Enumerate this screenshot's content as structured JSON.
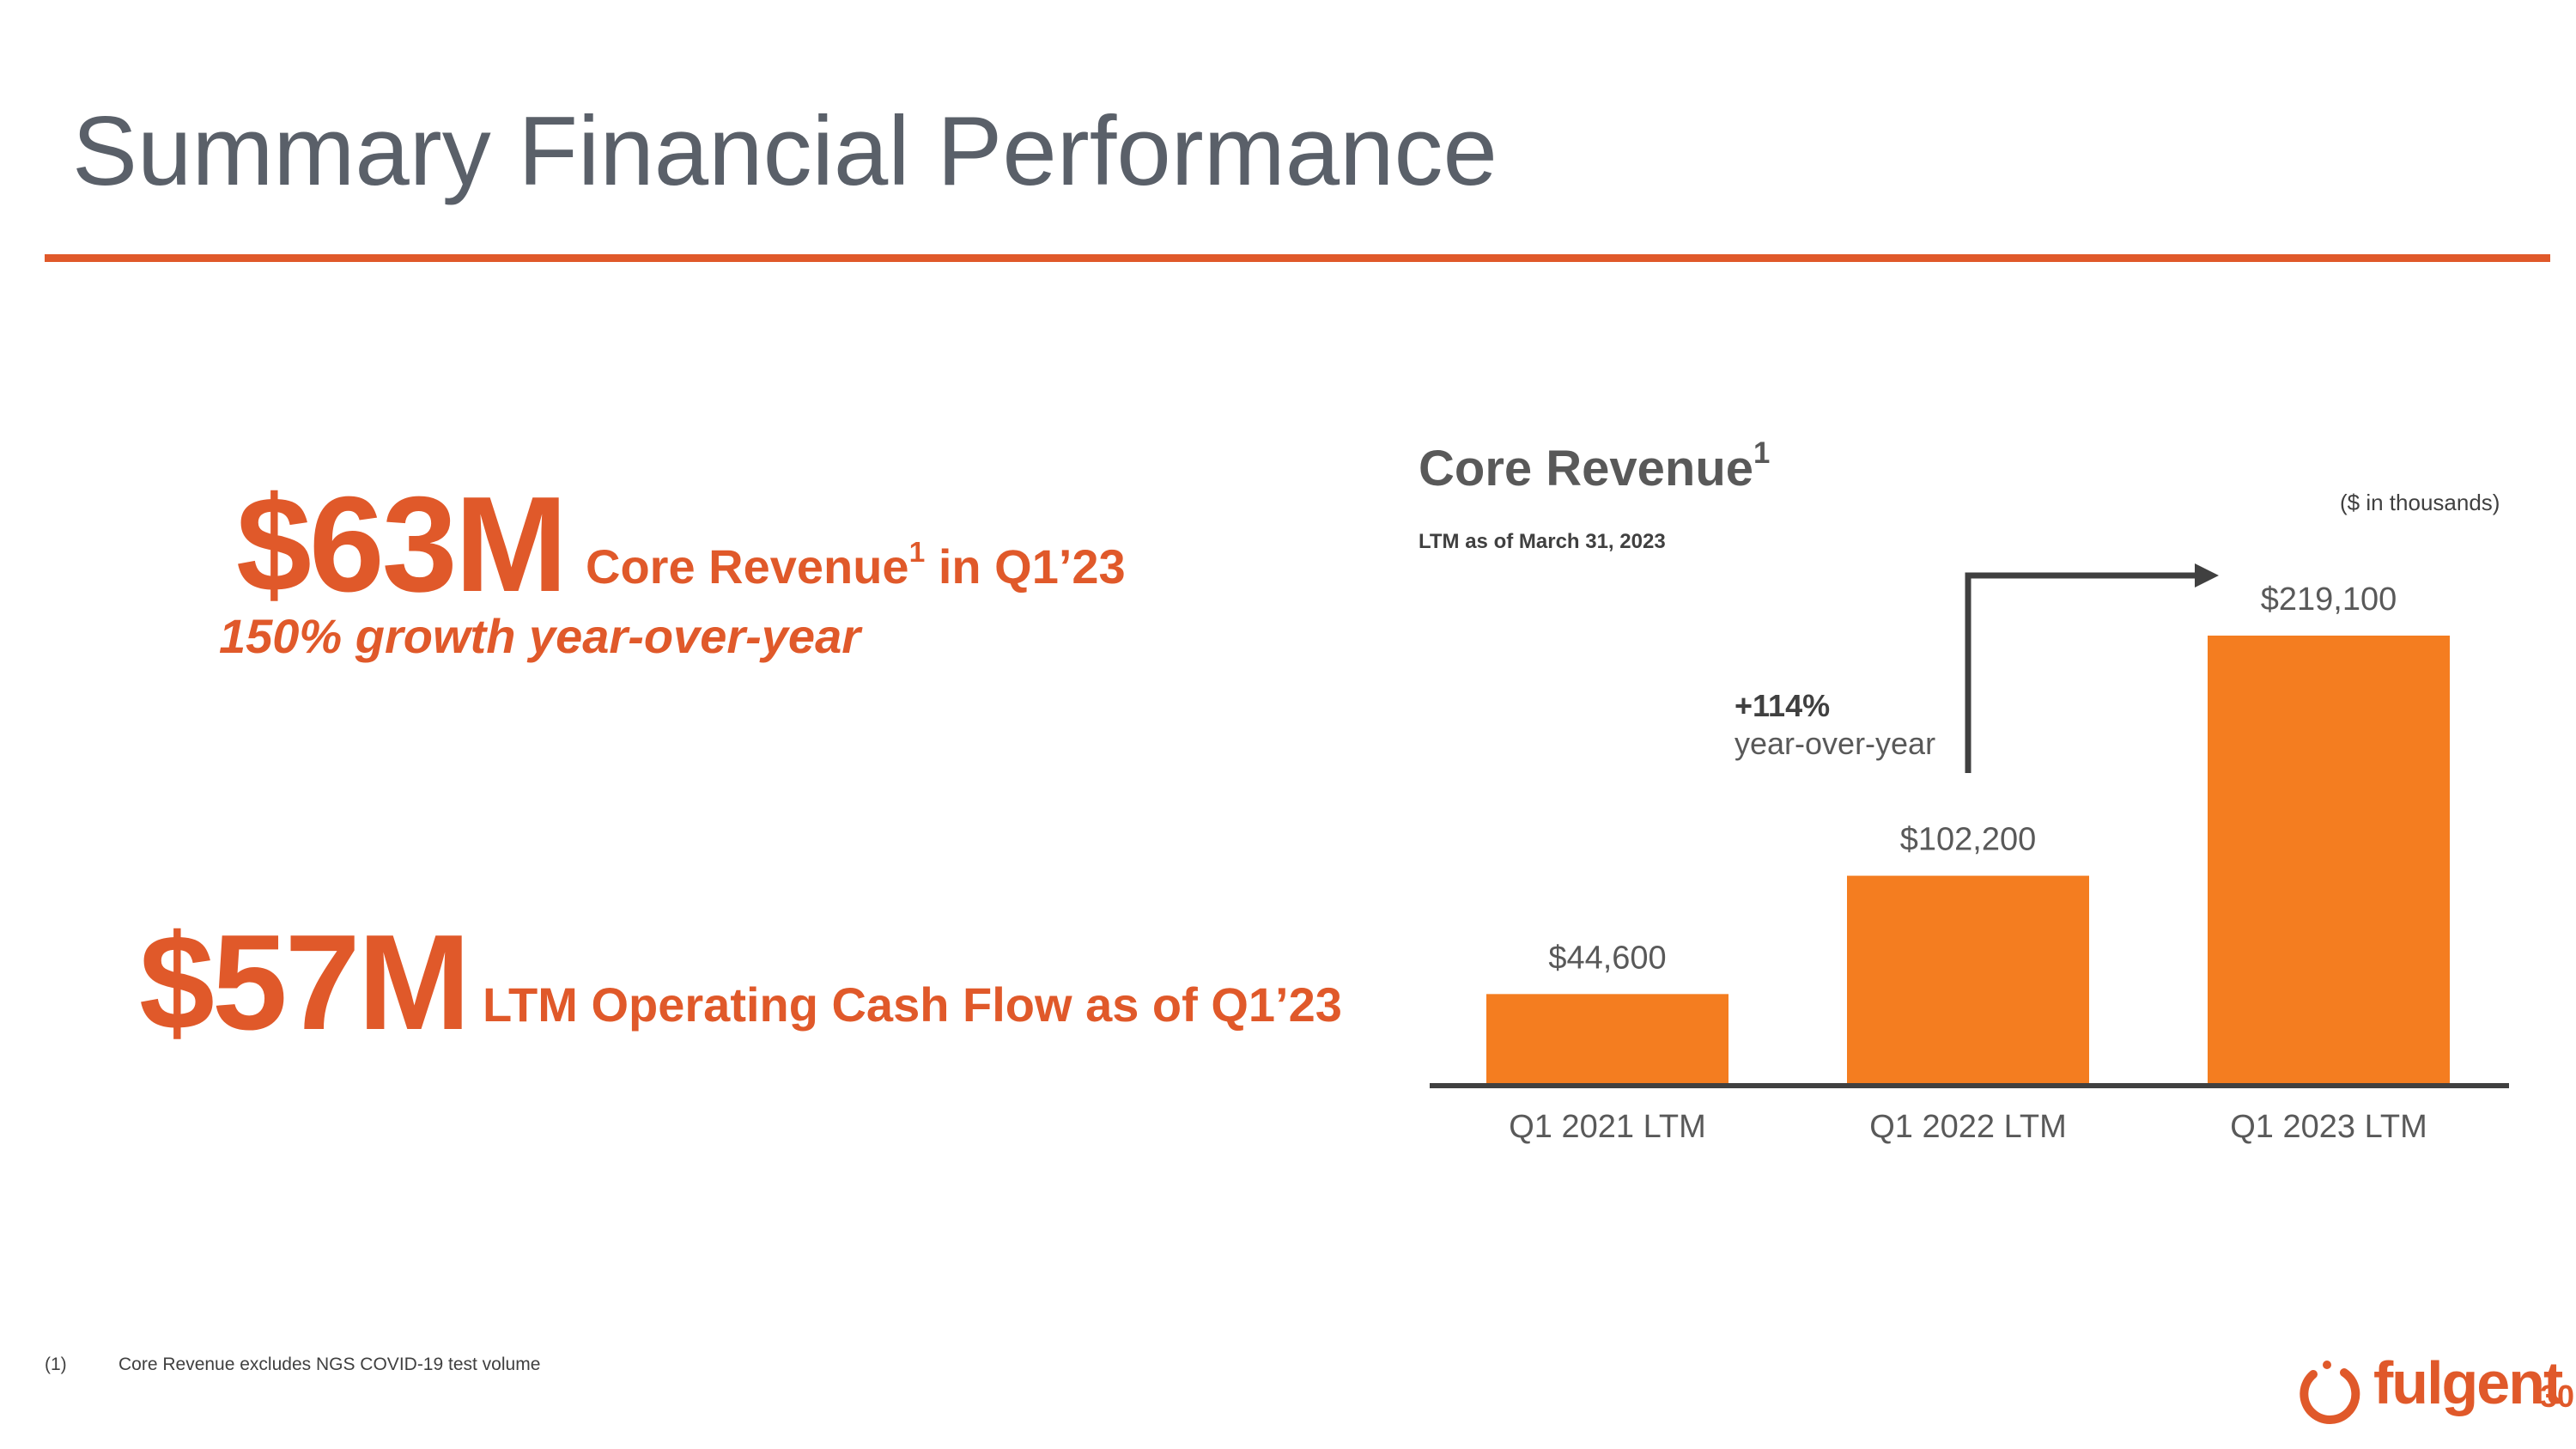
{
  "slide": {
    "title": "Summary Financial Performance",
    "page_number": "30",
    "accent_color": "#e0592a",
    "bar_color": "#f47d20"
  },
  "kpis": {
    "core_revenue": {
      "value": "$63M",
      "label": "Core Revenue",
      "label_sup": "1",
      "label_suffix": " in Q1’23",
      "growth": "150% growth year-over-year"
    },
    "cash_flow": {
      "value": "$57M",
      "label": "LTM Operating Cash Flow as of Q1’23"
    }
  },
  "chart": {
    "title": "Core Revenue",
    "title_sup": "1",
    "subtitle": "LTM as of March 31, 2023",
    "units": "($ in thousands)",
    "growth_value": "+114%",
    "growth_label": "year-over-year"
  },
  "chart_data": {
    "type": "bar",
    "title": "Core Revenue",
    "subtitle": "LTM as of March 31, 2023",
    "categories": [
      "Q1 2021 LTM",
      "Q1 2022 LTM",
      "Q1 2023 LTM"
    ],
    "values": [
      44600,
      102200,
      219100
    ],
    "value_labels": [
      "$44,600",
      "$102,200",
      "$219,100"
    ],
    "ylabel": "($ in thousands)",
    "ylim": [
      0,
      219100
    ],
    "annotation": "+114% year-over-year"
  },
  "footnote": {
    "marker": "(1)",
    "text": "Core Revenue excludes NGS COVID-19 test volume"
  },
  "logo": {
    "text": "fulgent"
  }
}
